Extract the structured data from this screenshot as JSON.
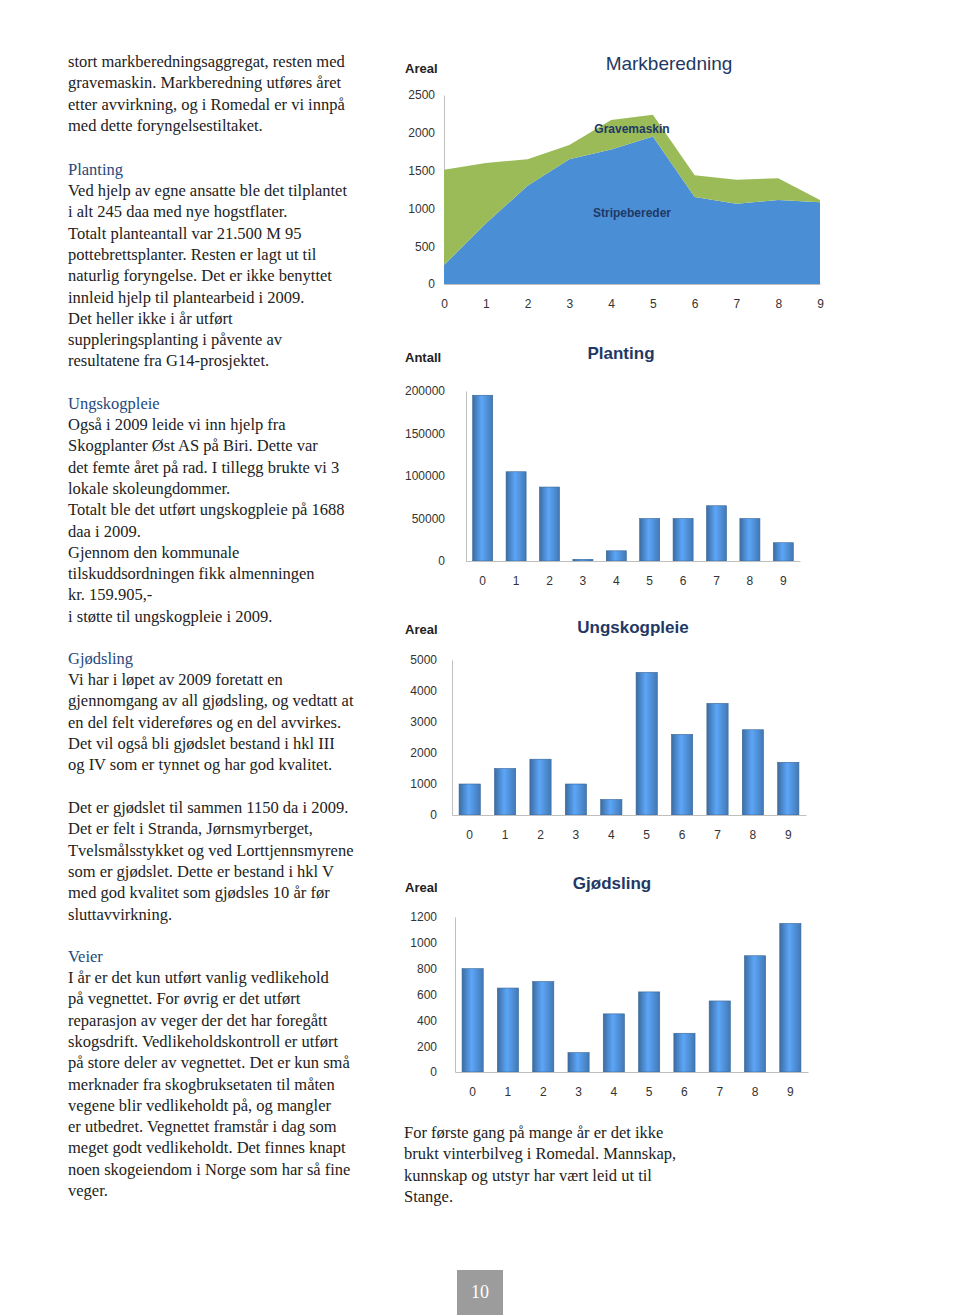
{
  "document": {
    "intro": [
      "stort markberedningsaggregat, resten med",
      "gravemaskin. Markberedning utføres året",
      "etter avvirkning, og i Romedal er vi innpå",
      "med dette foryngelsestiltaket."
    ],
    "sections": [
      {
        "heading": "Planting",
        "paragraphs": [
          [
            "Ved hjelp av egne ansatte ble det tilplantet",
            "i alt 245 daa med nye hogstflater.",
            "Totalt planteantall var 21.500 M 95",
            "pottebrettsplanter. Resten er lagt ut til",
            "naturlig foryngelse. Det er ikke benyttet",
            "innleid hjelp til plantearbeid i 2009.",
            "Det heller ikke i år utført",
            "suppleringsplanting i påvente av",
            "resultatene fra G14-prosjektet."
          ]
        ]
      },
      {
        "heading": "Ungskogpleie",
        "paragraphs": [
          [
            "Også i 2009 leide vi inn hjelp fra",
            "Skogplanter Øst AS på Biri. Dette var",
            "det femte året på rad. I tillegg brukte vi 3",
            "lokale skoleungdommer.",
            "Totalt ble det utført ungskogpleie på 1688",
            "daa i 2009.",
            "Gjennom den kommunale",
            "tilskuddsordningen fikk almenningen",
            "kr. 159.905,-",
            "i støtte til ungskogpleie i 2009."
          ]
        ]
      },
      {
        "heading": "Gjødsling",
        "paragraphs": [
          [
            "Vi har i løpet av 2009 foretatt en",
            "gjennomgang av all gjødsling, og vedtatt at",
            "en del felt videreføres og en del avvirkes.",
            "Det vil også bli gjødslet bestand i hkl III",
            "og IV som er tynnet og har god kvalitet."
          ],
          [
            "Det er gjødslet til sammen 1150 da i 2009.",
            "Det er felt i Stranda, Jørnsmyrberget,",
            "Tvelsmålsstykket og ved Lorttjennsmyrene",
            "som er gjødslet. Dette er bestand i hkl V",
            "med god kvalitet som gjødsles 10 år før",
            "sluttavvirkning."
          ]
        ]
      },
      {
        "heading": "Veier",
        "paragraphs": [
          [
            "I år er det kun utført vanlig vedlikehold",
            "på vegnettet. For øvrig er det utført",
            "reparasjon av veger der det har foregått",
            "skogsdrift. Vedlikeholdskontroll er utført",
            "på store deler av vegnettet. Det er kun små",
            "merknader fra skogbruksetaten til måten",
            "vegene blir vedlikeholdt på, og mangler",
            "er utbedret. Vegnettet framstår i dag som",
            "meget godt vedlikeholdt. Det finnes knapt",
            "noen skogeiendom i Norge som har så fine",
            "veger."
          ]
        ]
      }
    ],
    "side_note": [
      "For første gang på mange år er det ikke",
      "brukt vinterbilveg i Romedal. Mannskap,",
      "kunnskap og utstyr har vært leid ut til",
      "Stange."
    ],
    "page_number": "10"
  },
  "chart_data": [
    {
      "type": "area",
      "title": "Markberedning",
      "y_label": "Areal",
      "stacked": true,
      "x": [
        0,
        1,
        2,
        3,
        4,
        5,
        6,
        7,
        8,
        9
      ],
      "series": [
        {
          "name": "Stripebereder",
          "color": "#4a8fd6",
          "values": [
            250,
            800,
            1300,
            1650,
            1780,
            1950,
            1150,
            1060,
            1110,
            1080
          ]
        },
        {
          "name": "Gravemaskin",
          "color": "#9bbb59",
          "values": [
            1260,
            800,
            350,
            190,
            390,
            290,
            290,
            320,
            290,
            30
          ]
        }
      ],
      "xlim": [
        0,
        9
      ],
      "xticks": [
        0,
        1,
        2,
        3,
        4,
        5,
        6,
        7,
        8,
        9
      ],
      "ylim": [
        0,
        2500
      ],
      "yticks": [
        0,
        500,
        1000,
        1500,
        2000,
        2500
      ],
      "grid": false
    },
    {
      "type": "bar",
      "title": "Planting",
      "y_label": "Antall",
      "categories": [
        "0",
        "1",
        "2",
        "3",
        "4",
        "5",
        "6",
        "7",
        "8",
        "9"
      ],
      "values": [
        195000,
        105000,
        87000,
        2000,
        12000,
        50000,
        50000,
        65000,
        50000,
        21500
      ],
      "color": "#4a86c8",
      "ylim": [
        0,
        200000
      ],
      "yticks": [
        0,
        50000,
        100000,
        150000,
        200000
      ],
      "grid": false
    },
    {
      "type": "bar",
      "title": "Ungskogpleie",
      "y_label": "Areal",
      "categories": [
        "0",
        "1",
        "2",
        "3",
        "4",
        "5",
        "6",
        "7",
        "8",
        "9"
      ],
      "values": [
        1000,
        1500,
        1800,
        1000,
        500,
        4600,
        2600,
        3600,
        2750,
        1700
      ],
      "color": "#4a86c8",
      "ylim": [
        0,
        5000
      ],
      "yticks": [
        0,
        1000,
        2000,
        3000,
        4000,
        5000
      ],
      "grid": false
    },
    {
      "type": "bar",
      "title": "Gjødsling",
      "y_label": "Areal",
      "categories": [
        "0",
        "1",
        "2",
        "3",
        "4",
        "5",
        "6",
        "7",
        "8",
        "9"
      ],
      "values": [
        800,
        650,
        700,
        150,
        450,
        620,
        300,
        550,
        900,
        1150
      ],
      "color": "#4a86c8",
      "ylim": [
        0,
        1200
      ],
      "yticks": [
        0,
        200,
        400,
        600,
        800,
        1000,
        1200
      ],
      "grid": false
    }
  ]
}
